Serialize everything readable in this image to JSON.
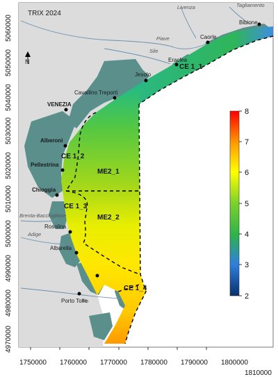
{
  "title": "TRIX 2024",
  "north": "N",
  "cities": [
    {
      "name": "Caorle"
    },
    {
      "name": "Bibione"
    },
    {
      "name": "Eraclea"
    },
    {
      "name": "Jesolo"
    },
    {
      "name": "Cavallino Treporti"
    },
    {
      "name": "VENEZIA"
    },
    {
      "name": "Alberoni"
    },
    {
      "name": "Pellestrina"
    },
    {
      "name": "Chioggia"
    },
    {
      "name": "Rosolina"
    },
    {
      "name": "Albarella"
    },
    {
      "name": "Porto Tolle"
    }
  ],
  "rivers": [
    "Livenza",
    "Tagliamento",
    "Piave",
    "Sile",
    "Brenta-Bacchiglione",
    "Adige",
    "Po"
  ],
  "zones": [
    "CE 1_1",
    "CE 1_2",
    "ME2_1",
    "CE 1_3",
    "ME2_2",
    "CE 1_4"
  ],
  "x_ticks": [
    "1750000",
    "1760000",
    "1770000",
    "1780000",
    "1790000",
    "1800000",
    "1810000"
  ],
  "y_ticks": [
    "4970000",
    "4980000",
    "4990000",
    "5000000",
    "5010000",
    "5020000",
    "5030000",
    "5040000",
    "5050000",
    "5060000"
  ],
  "legend": {
    "min": 2,
    "max": 8,
    "ticks": [
      "2",
      "3",
      "4",
      "5",
      "6",
      "7",
      "8"
    ],
    "colors": [
      "#08306b",
      "#2f7fe0",
      "#2db34a",
      "#7bd22a",
      "#ffff00",
      "#ff9900",
      "#ff0000"
    ]
  }
}
